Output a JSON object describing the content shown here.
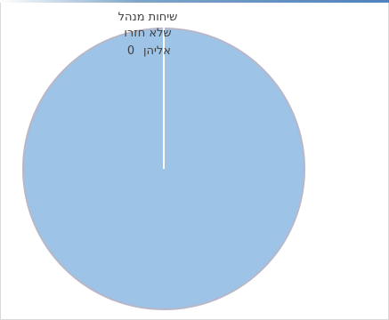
{
  "colors": {
    "slice_fill": "#9dc3e6",
    "slice_edge": "#b7b7c9",
    "leader": "#ffffff",
    "text": "#404040",
    "accent": "#4f81bd"
  },
  "chart_data": {
    "type": "pie",
    "title": "",
    "slices": [
      {
        "label_lines": [
          "שיחות מנהל",
          "שלא חזרו",
          "אליהן"
        ],
        "value": 0
      }
    ]
  }
}
